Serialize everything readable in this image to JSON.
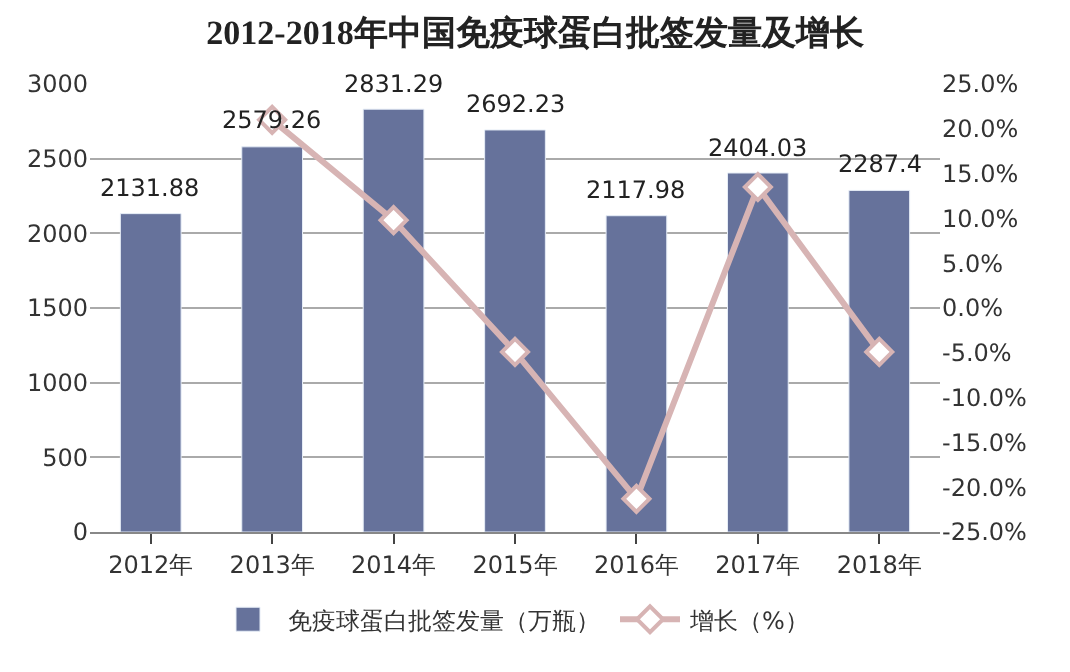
{
  "chart_data": {
    "type": "bar",
    "title": "2012-2018年中国免疫球蛋白批签发量及增长",
    "categories": [
      "2012年",
      "2013年",
      "2014年",
      "2015年",
      "2016年",
      "2017年",
      "2018年"
    ],
    "series": [
      {
        "name": "免疫球蛋白批签发量（万瓶）",
        "color": "#66729b",
        "values": [
          2131.88,
          2579.26,
          2831.29,
          2692.23,
          2117.98,
          2404.03,
          2287.4
        ],
        "value_labels": [
          "2131.88",
          "2579.26",
          "2831.29",
          "2692.23",
          "2117.98",
          "2404.03",
          "2287.4"
        ]
      },
      {
        "name": "增长（%）",
        "type": "line",
        "axis": "y2",
        "color": "#d7b4b4",
        "marker": "diamond",
        "values": [
          null,
          21.0,
          9.8,
          -4.9,
          -21.3,
          13.5,
          -4.9
        ]
      }
    ],
    "ylim": [
      0,
      3000
    ],
    "yticks": [
      0,
      500,
      1000,
      1500,
      2000,
      2500,
      3000
    ],
    "y2lim": [
      -25,
      25
    ],
    "y2ticks": [
      {
        "value": -25,
        "label": "-25.0%"
      },
      {
        "value": -20,
        "label": "-20.0%"
      },
      {
        "value": -15,
        "label": "-15.0%"
      },
      {
        "value": -10,
        "label": "-10.0%"
      },
      {
        "value": -5,
        "label": "-5.0%"
      },
      {
        "value": 0,
        "label": "0.0%"
      },
      {
        "value": 5,
        "label": "5.0%"
      },
      {
        "value": 10,
        "label": "10.0%"
      },
      {
        "value": 15,
        "label": "15.0%"
      },
      {
        "value": 20,
        "label": "20.0%"
      },
      {
        "value": 25,
        "label": "25.0%"
      }
    ],
    "grid": "y",
    "legend": "bottom"
  }
}
